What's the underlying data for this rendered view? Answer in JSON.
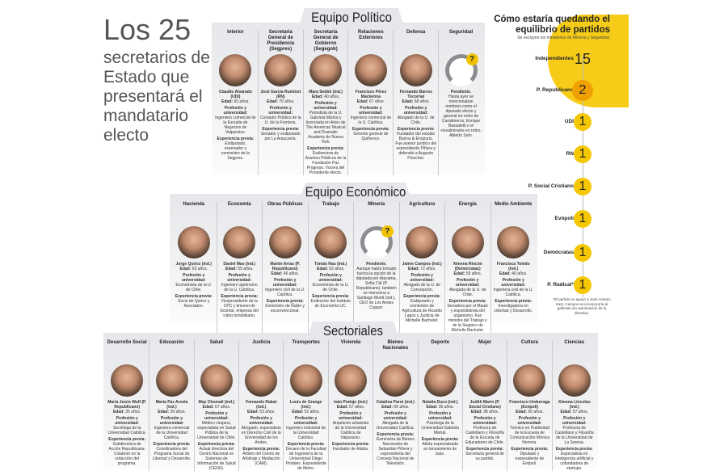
{
  "title": {
    "big": "Los 25",
    "sub": "secretarios de Estado que presentará el mandatario electo"
  },
  "labels": {
    "age": "Edad:",
    "profession": "Profesión y universidad:",
    "experience": "Experiencia previa:"
  },
  "politico": {
    "heading": "Equipo Político",
    "cards": [
      {
        "role": "Interior",
        "name": "Claudio Alvarado (UDI)",
        "age": "65 años.",
        "profession": "Ingeniero comercial de la Escuela de Negocios de Valparaíso.",
        "experience": "Exdiputado, exsenador y exministro de la Segpres."
      },
      {
        "role": "Secretaría General de Presidencia (Segpres)",
        "name": "José García Ruminot (RN)",
        "age": "70 años.",
        "profession": "Contador Público de la U. de la Frontera.",
        "experience": "Senador y exdiputado por La Araucanía."
      },
      {
        "role": "Secretaría General de Gobierno (Segegob)",
        "name": "Mara Sedini (ind.)",
        "age": "40 años.",
        "profession": "Periodista de la U. Gabriela Mistral y licenciada en Artes de The American Musical and Dramatic Academy de Nueva York.",
        "experience": "Exdirectora de Asuntos Públicos de la Fundación Paz Progreso. Vocera del Presidente electo."
      },
      {
        "role": "Relaciones Exteriores",
        "name": "Francisco Pérez Mackenna",
        "age": "67 años.",
        "profession": "Ingeniero comercial de la U. Católica.",
        "experience": "Gerente general de Quiñenco."
      },
      {
        "role": "Defensa",
        "name": "Fernando Barros Tocornal",
        "age": "68 años.",
        "profession": "Abogado de la U. de Chile.",
        "experience": "Fundador del estudio Barros & Errázuriz. Fue asesor jurídico del expresidente Piñera y defendió a Augusto Pinochet."
      },
      {
        "role": "Seguridad",
        "pending": true,
        "name": "Pendiente.",
        "text": "Hasta ayer se mencionaban nombres como el diputado electo y general en retiro de Carabineros, Enrique Bassaletti o el vicealmirante en retiro, Alberto Soto."
      }
    ]
  },
  "economico": {
    "heading": "Equipo Económico",
    "cards": [
      {
        "role": "Hacienda",
        "name": "Jorge Quiroz (ind.)",
        "age": "63 años.",
        "profession": "Economista de la U. de Chile.",
        "experience": "Socio de Quiroz y Asociados."
      },
      {
        "role": "Economía",
        "name": "Daniel Mas (ind.)",
        "age": "55 años.",
        "profession": "Ingeniero agrónomo de la U. Católica.",
        "experience": "Vicepresidente de la CPC y timonel de Ecomar, empresa del rubro inmobiliario."
      },
      {
        "role": "Obras Públicas",
        "name": "Martín Arrau (P. Republicano)",
        "age": "46 años.",
        "profession": "Ingeniero civil de la U. Católica.",
        "experience": "Exministro de Ñuble y exconvencional."
      },
      {
        "role": "Trabajo",
        "name": "Tomás Rau (ind.)",
        "age": "52 años.",
        "profession": "Economista de la U. de Chile.",
        "experience": "Exdirector del Instituto de Economía UC."
      },
      {
        "role": "Minería",
        "pending": true,
        "name": "Pendiente.",
        "text": "Aunque había tomado fuerza la opción de la diputada por Atacama, Sofía Cid (P. Republicano), también se menciona a Santiago Montt (ind.), CEO de Los Andes Copper."
      },
      {
        "role": "Agricultura",
        "name": "Jaime Campos (ind.)",
        "age": "72 años.",
        "profession": "Abogado de la U. de Concepción.",
        "experience": "Exdiputado y exministro de Agricultura de Ricardo Lagos y Justicia de Michelle Bachelet."
      },
      {
        "role": "Energía",
        "name": "Ximena Rincón (Demócratas)",
        "age": "59 años.",
        "profession": "Abogada de la U. de Chile.",
        "experience": "Senadora por el Maule y exprestidenta del organismo. Fue ministra del Trabajo y de la Segpres de Michelle Bachelet."
      },
      {
        "role": "Medio Ambiente",
        "name": "Francisca Toledo (ind.)",
        "age": "40 años.",
        "profession": "Ingeniera civil de la U. Católica.",
        "experience": "Investigadora en Libertad y Desarrollo."
      }
    ]
  },
  "sectoriales": {
    "heading": "Sectoriales",
    "cards": [
      {
        "role": "Desarrollo Social",
        "name": "María Jesús Wulf (P. Republicano)",
        "age": "35 años.",
        "profession": "Socióloga de la Universidad Católica.",
        "experience": "Subdirectora de Acción Republicana. Colaboró en la redacción del programa."
      },
      {
        "role": "Educación",
        "name": "María Paz Arzola (ind.)",
        "age": "39 años.",
        "profession": "Ingeniera comercial de la Universidad Católica.",
        "experience": "Coordinadora del Programa Social de Libertad y Desarrollo."
      },
      {
        "role": "Salud",
        "name": "May Chomali (ind.)",
        "age": "67 años.",
        "profession": "Médico cirujano, especialista en Salud Pública de la Universidad de Chile.",
        "experience": "Actual directora del Centro Nacional en Sistemas de Información de Salud (CENS)."
      },
      {
        "role": "Justicia",
        "name": "Fernando Rabat (ind.)",
        "age": "53 años.",
        "profession": "Abogado, especialista en Derecho Civil de la Universidad de los Andes.",
        "experience": "Árbitro del Centro de Arbitraje y Mediación (CAM)."
      },
      {
        "role": "Transportes",
        "name": "Louis de Grange (ind.)",
        "age": "52 años.",
        "profession": "Ingeniero industrial de la Universidad Católica.",
        "experience": "Decano de la Facultad de Ingeniería de la Universidad Diego Portales. Expresidente de Metro."
      },
      {
        "role": "Vivienda",
        "name": "Iván Poduje (ind.)",
        "age": "57 años.",
        "profession": "Arquitecto urbanista de la Universidad Católica de Valparaíso.",
        "experience": "Fundador de Atisba."
      },
      {
        "role": "Bienes Nacionales",
        "name": "Catalina Parot (ind.)",
        "age": "69 años.",
        "profession": "Abogada de la Universidad Católica.",
        "experience": "Exministra de Bienes Nacionales de Sebastián Piñera y expresidenta del Consejo Nacional de Televisión."
      },
      {
        "role": "Deporte",
        "name": "Natalia Duco (ind.)",
        "age": "36 años.",
        "profession": "Psicóloga de la Universidad Gabriela Mistral.",
        "experience": "Atleta especializada en lanzamiento de bala."
      },
      {
        "role": "Mujer",
        "name": "Judith Marín (P. Social Cristiano)",
        "age": "38 años.",
        "profession": "Profesora de Castellano y Filosofía de la Escuela de Educadores de Chile.",
        "experience": "Secretaria general de su partido."
      },
      {
        "role": "Cultura",
        "name": "Francisco Undurraga (Evópoli)",
        "age": "60 años.",
        "profession": "Técnico en Publicidad de la Escuela de Comunicación Mónica Herrera.",
        "experience": "Diputado y expresidente de Evópoli."
      },
      {
        "role": "Ciencias",
        "name": "Ximena Lincolao (ind.)",
        "age": "57 años.",
        "profession": "Profesora de Castellano y Filosofía de la Universidad de La Serena.",
        "experience": "Especialista en inteligencia artificial y cofundadora de startups."
      }
    ]
  },
  "parties": {
    "title": "Cómo estaría quedando el equilibrio de partidos",
    "note": "Se excluyen los ministerios de Minería y Seguridad.",
    "accent": "#f5c700",
    "items": [
      {
        "name": "Independientes",
        "count": "15"
      },
      {
        "name": "P. Republicano",
        "count": "2"
      },
      {
        "name": "UDI",
        "count": "1"
      },
      {
        "name": "RN",
        "count": "1"
      },
      {
        "name": "P. Social Cristiano",
        "count": "1"
      },
      {
        "name": "Evópoli",
        "count": "1"
      },
      {
        "name": "Demócratas",
        "count": "1"
      },
      {
        "name": "P. Radical*",
        "count": "1"
      }
    ],
    "footnote": "*El partido no apoyó a José Antonio Kast. Campos se incorporaría al gabinete sin autorización de la directiva."
  }
}
